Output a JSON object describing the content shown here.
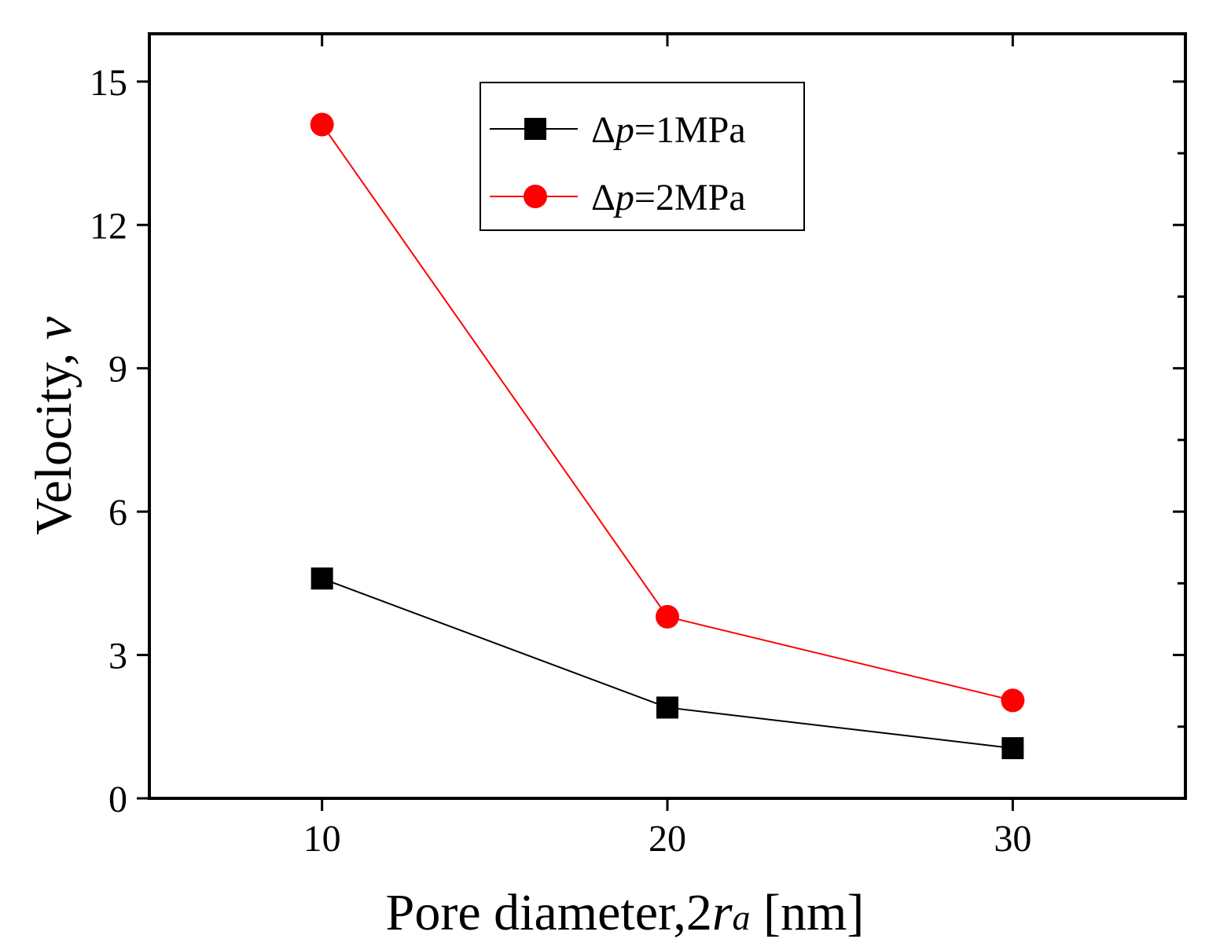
{
  "chart_data": {
    "type": "line",
    "xlabel": {
      "main": "Pore diameter,2",
      "var": "r",
      "sub": "a",
      "unit": " [nm]"
    },
    "ylabel": {
      "main": "Velocity, ",
      "var": "v"
    },
    "xlim": [
      5,
      35
    ],
    "ylim": [
      0,
      16
    ],
    "x": [
      10,
      20,
      30
    ],
    "xticks": [
      "10",
      "20",
      "30"
    ],
    "yticks": [
      "0",
      "3",
      "6",
      "9",
      "12",
      "15"
    ],
    "grid": false,
    "legend_position": "top-center",
    "series": [
      {
        "name": "Δp=1MPa",
        "legend": {
          "pre": "Δ",
          "var": "p",
          "post": "=1MPa"
        },
        "color": "#000000",
        "marker": "square",
        "values": [
          4.6,
          1.9,
          1.05
        ]
      },
      {
        "name": "Δp=2MPa",
        "legend": {
          "pre": "Δ",
          "var": "p",
          "post": "=2MPa"
        },
        "color": "#ff0000",
        "marker": "circle",
        "values": [
          14.1,
          3.8,
          2.05
        ]
      }
    ]
  }
}
